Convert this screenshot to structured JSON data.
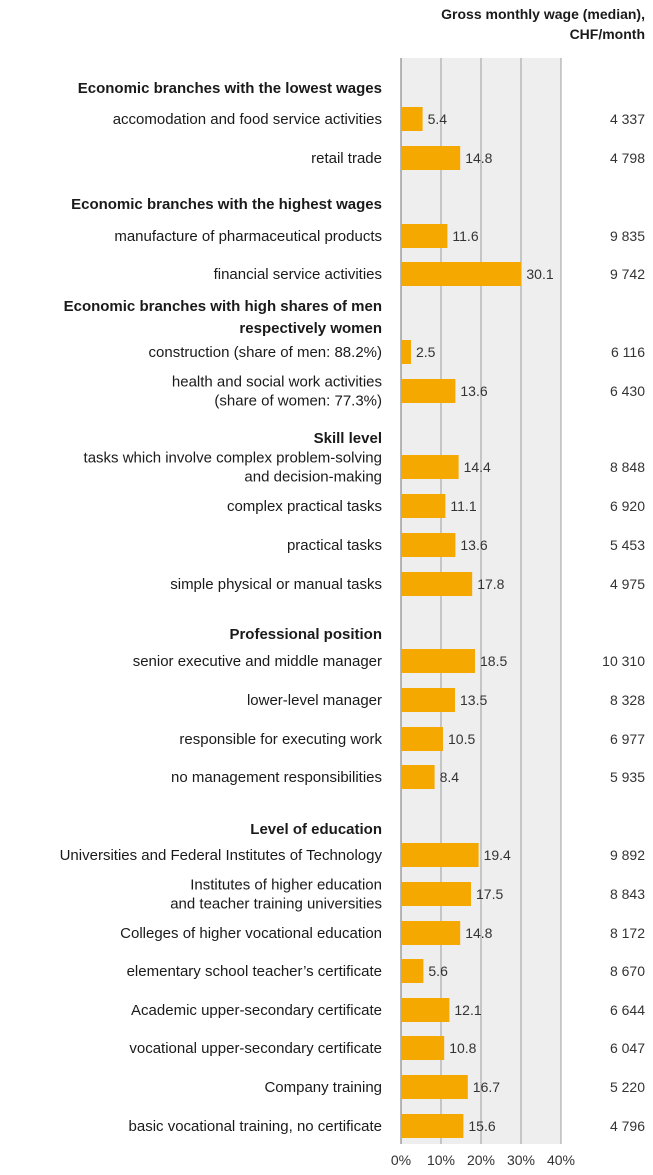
{
  "chart_data": {
    "type": "bar",
    "orientation": "horizontal",
    "value_header_lines": [
      "Gross monthly wage (median),",
      "CHF/month"
    ],
    "xlim": [
      0,
      40
    ],
    "x_ticks": [
      "0%",
      "10%",
      "20%",
      "30%",
      "40%"
    ],
    "grid": true,
    "colors": {
      "bar": "#f5a800",
      "plot_bg": "#eeeeee",
      "grid": "#888888",
      "text": "#1a1a1a"
    },
    "groups": [
      {
        "heading": [
          "Economic branches with the lowest wages"
        ],
        "items": [
          {
            "label": [
              "accomodation and food service activities"
            ],
            "value": 5.4,
            "value_label": "5.4",
            "wage": "4 337"
          },
          {
            "label": [
              "retail trade"
            ],
            "value": 14.8,
            "value_label": "14.8",
            "wage": "4 798"
          }
        ]
      },
      {
        "heading": [
          "Economic branches with the highest wages"
        ],
        "items": [
          {
            "label": [
              "manufacture of pharmaceutical products"
            ],
            "value": 11.6,
            "value_label": "11.6",
            "wage": "9 835"
          },
          {
            "label": [
              "financial service activities"
            ],
            "value": 30.1,
            "value_label": "30.1",
            "wage": "9 742"
          }
        ]
      },
      {
        "heading": [
          "Economic branches with high shares of men",
          "respectively women"
        ],
        "items": [
          {
            "label": [
              "construction (share of men: 88.2%)"
            ],
            "value": 2.5,
            "value_label": "2.5",
            "wage": "6 116"
          },
          {
            "label": [
              "health and social work activities",
              "(share of women: 77.3%)"
            ],
            "value": 13.6,
            "value_label": "13.6",
            "wage": "6 430"
          }
        ]
      },
      {
        "heading": [
          "Skill level"
        ],
        "items": [
          {
            "label": [
              "tasks which involve complex problem-solving",
              "and decision-making"
            ],
            "value": 14.4,
            "value_label": "14.4",
            "wage": "8 848"
          },
          {
            "label": [
              "complex practical tasks"
            ],
            "value": 11.1,
            "value_label": "11.1",
            "wage": "6 920"
          },
          {
            "label": [
              "practical tasks"
            ],
            "value": 13.6,
            "value_label": "13.6",
            "wage": "5 453"
          },
          {
            "label": [
              "simple physical or manual tasks"
            ],
            "value": 17.8,
            "value_label": "17.8",
            "wage": "4 975"
          }
        ]
      },
      {
        "heading": [
          "Professional position"
        ],
        "items": [
          {
            "label": [
              "senior executive and middle manager"
            ],
            "value": 18.5,
            "value_label": "18.5",
            "wage": "10 310"
          },
          {
            "label": [
              "lower-level manager"
            ],
            "value": 13.5,
            "value_label": "13.5",
            "wage": "8 328"
          },
          {
            "label": [
              "responsible for executing work"
            ],
            "value": 10.5,
            "value_label": "10.5",
            "wage": "6 977"
          },
          {
            "label": [
              "no management responsibilities"
            ],
            "value": 8.4,
            "value_label": "8.4",
            "wage": "5 935"
          }
        ]
      },
      {
        "heading": [
          "Level of education"
        ],
        "items": [
          {
            "label": [
              "Universities and Federal Institutes of Technology"
            ],
            "value": 19.4,
            "value_label": "19.4",
            "wage": "9 892"
          },
          {
            "label": [
              "Institutes of higher education",
              "and teacher training universities"
            ],
            "value": 17.5,
            "value_label": "17.5",
            "wage": "8 843"
          },
          {
            "label": [
              "Colleges of higher vocational education"
            ],
            "value": 14.8,
            "value_label": "14.8",
            "wage": "8 172"
          },
          {
            "label": [
              "elementary school teacher’s certificate"
            ],
            "value": 5.6,
            "value_label": "5.6",
            "wage": "8 670"
          },
          {
            "label": [
              "Academic upper-secondary certificate"
            ],
            "value": 12.1,
            "value_label": "12.1",
            "wage": "6 644"
          },
          {
            "label": [
              "vocational upper-secondary certificate"
            ],
            "value": 10.8,
            "value_label": "10.8",
            "wage": "6 047"
          },
          {
            "label": [
              "Company training"
            ],
            "value": 16.7,
            "value_label": "16.7",
            "wage": "5 220"
          },
          {
            "label": [
              "basic vocational training, no certificate"
            ],
            "value": 15.6,
            "value_label": "15.6",
            "wage": "4 796"
          }
        ]
      }
    ]
  }
}
